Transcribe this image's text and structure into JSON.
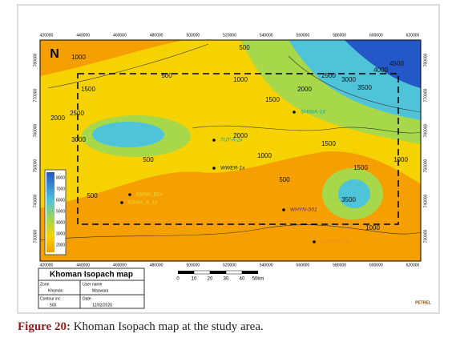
{
  "figure": {
    "x_ticks": [
      "420000",
      "440000",
      "460000",
      "480000",
      "500000",
      "520000",
      "540000",
      "560000",
      "580000",
      "600000",
      "620000"
    ],
    "y_ticks": [
      "730000",
      "740000",
      "750000",
      "760000",
      "770000",
      "780000"
    ],
    "north": "N",
    "contour_labels": [
      "1000",
      "500",
      "1500",
      "2000",
      "2500",
      "3000",
      "500",
      "1000",
      "1500",
      "2000",
      "2500",
      "3000",
      "3500",
      "4000",
      "4500",
      "1000",
      "1500",
      "2000",
      "500",
      "3500",
      "1500",
      "1000",
      "500",
      "500",
      "1000"
    ],
    "wells": [
      "EBAH_B1x",
      "EBAH_A_1x",
      "WWER-1x",
      "AMMAR-1X",
      "WHYN-S01",
      "SHIWA-1X",
      "TUT-A-2x"
    ],
    "legend_ticks": [
      "8000",
      "7000",
      "6000",
      "5000",
      "4000",
      "3000",
      "2000"
    ],
    "title_block": {
      "title": "Khoman Isopach map",
      "zone_label": "Zone",
      "zone": "Khoman",
      "user_label": "User name",
      "user": "Maswara",
      "contour_label": "Contour inc",
      "contour": "500",
      "date_label": "Date",
      "date": "12/02/2020"
    },
    "scale": [
      "0",
      "10",
      "20",
      "30",
      "40",
      "50km"
    ],
    "logo": "PETREL",
    "caption": {
      "label": "Figure 20:",
      "text": " Khoman Isopach map at the study area."
    }
  }
}
